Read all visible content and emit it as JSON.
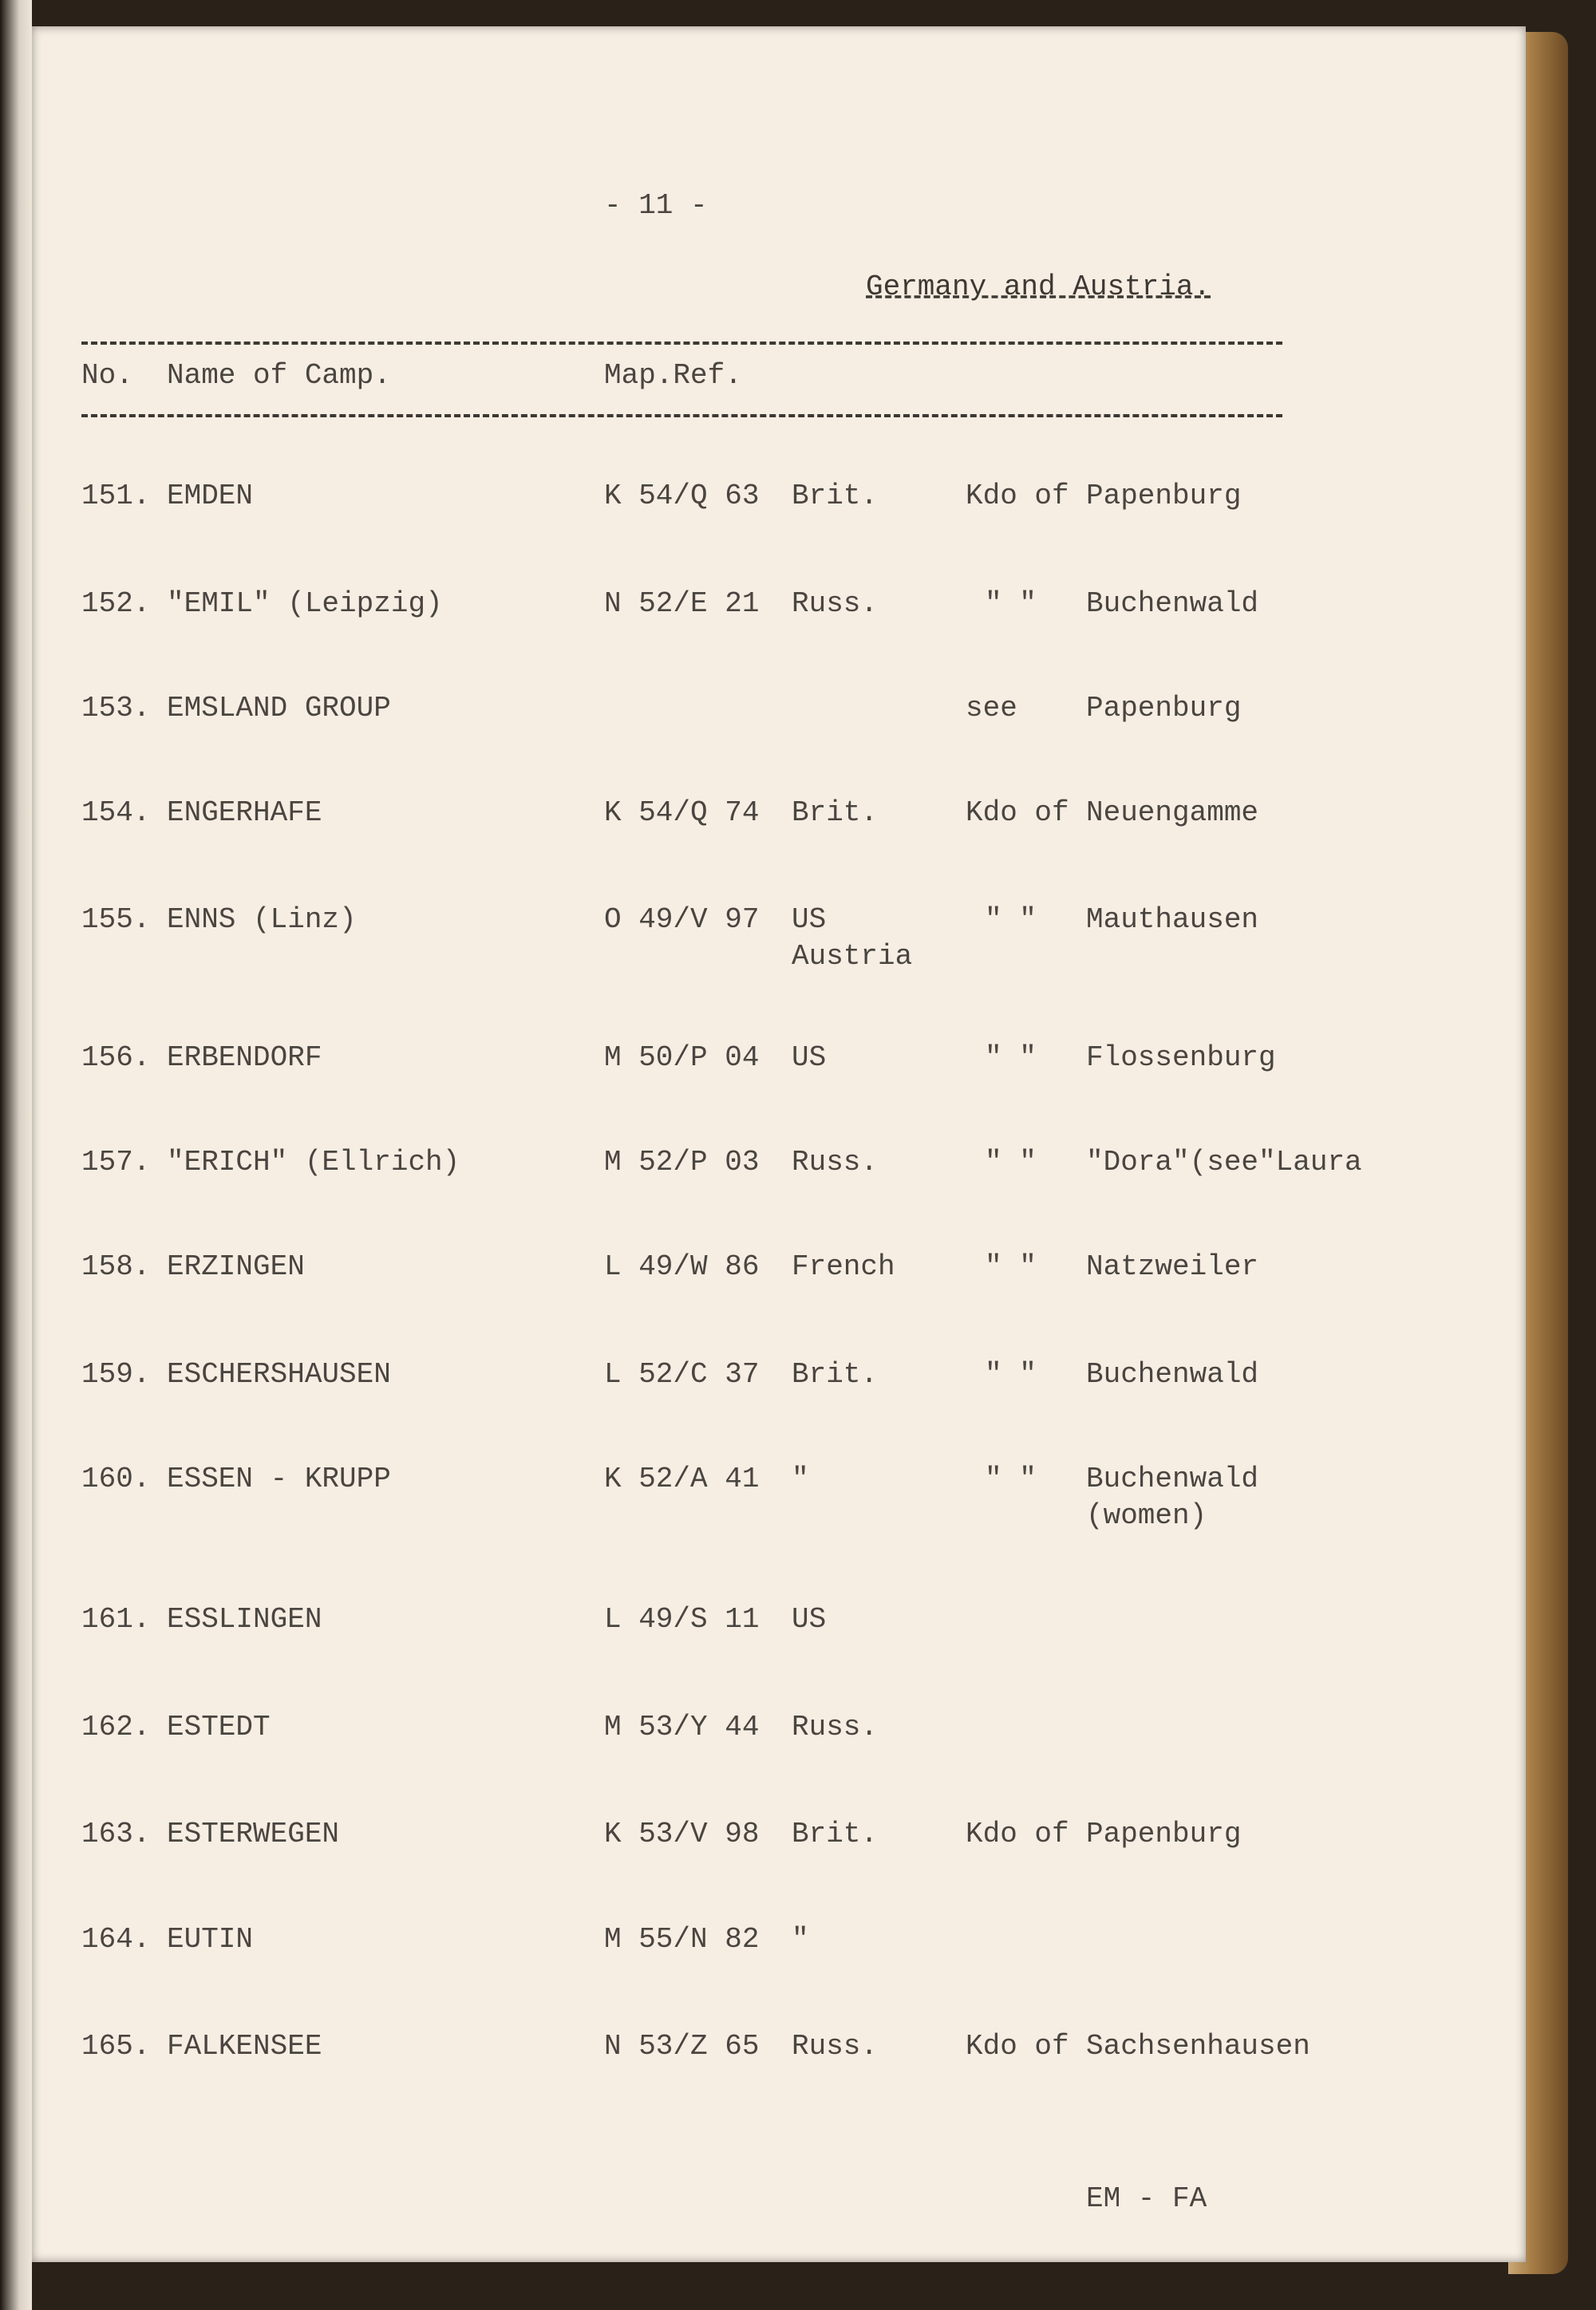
{
  "page_number": "- 11 -",
  "section_title": "Germany and Austria.",
  "headers": {
    "no": "No.",
    "name": "Name of Camp.",
    "map_ref": "Map.Ref."
  },
  "rows": [
    {
      "no": "151.",
      "name": "EMDEN",
      "map_ref": "K 54/Q 63",
      "zone": "Brit.",
      "relation": "Kdo of",
      "target": "Papenburg"
    },
    {
      "no": "152.",
      "name": "\"EMIL\" (Leipzig)",
      "map_ref": "N 52/E 21",
      "zone": "Russ.",
      "relation": "\"  \"",
      "target": "Buchenwald"
    },
    {
      "no": "153.",
      "name": "EMSLAND GROUP",
      "map_ref": "",
      "zone": "",
      "relation": "see",
      "target": "Papenburg"
    },
    {
      "no": "154.",
      "name": "ENGERHAFE",
      "map_ref": "K 54/Q 74",
      "zone": "Brit.",
      "relation": "Kdo of",
      "target": "Neuengamme"
    },
    {
      "no": "155.",
      "name": "ENNS (Linz)",
      "map_ref": "O 49/V 97",
      "zone": "US\nAustria",
      "relation": "\"  \"",
      "target": "Mauthausen"
    },
    {
      "no": "156.",
      "name": "ERBENDORF",
      "map_ref": "M 50/P 04",
      "zone": "US",
      "relation": "\"  \"",
      "target": "Flossenburg"
    },
    {
      "no": "157.",
      "name": "\"ERICH\" (Ellrich)",
      "map_ref": "M 52/P 03",
      "zone": "Russ.",
      "relation": "\"  \"",
      "target": "\"Dora\"(see\"Laura"
    },
    {
      "no": "158.",
      "name": "ERZINGEN",
      "map_ref": "L 49/W 86",
      "zone": "French",
      "relation": "\"  \"",
      "target": "Natzweiler"
    },
    {
      "no": "159.",
      "name": "ESCHERSHAUSEN",
      "map_ref": "L 52/C 37",
      "zone": "Brit.",
      "relation": "\"  \"",
      "target": "Buchenwald"
    },
    {
      "no": "160.",
      "name": "ESSEN - KRUPP",
      "map_ref": "K 52/A 41",
      "zone": "\"",
      "relation": "\"  \"",
      "target": "Buchenwald\n(women)"
    },
    {
      "no": "161.",
      "name": "ESSLINGEN",
      "map_ref": "L 49/S 11",
      "zone": "US",
      "relation": "",
      "target": ""
    },
    {
      "no": "162.",
      "name": "ESTEDT",
      "map_ref": "M 53/Y 44",
      "zone": "Russ.",
      "relation": "",
      "target": ""
    },
    {
      "no": "163.",
      "name": "ESTERWEGEN",
      "map_ref": "K 53/V 98",
      "zone": "Brit.",
      "relation": "Kdo of",
      "target": "Papenburg"
    },
    {
      "no": "164.",
      "name": "EUTIN",
      "map_ref": "M 55/N 82",
      "zone": "\"",
      "relation": "",
      "target": ""
    },
    {
      "no": "165.",
      "name": "FALKENSEE",
      "map_ref": "N 53/Z 65",
      "zone": "Russ.",
      "relation": "Kdo of",
      "target": "Sachsenhausen"
    }
  ],
  "footer": "EM - FA"
}
